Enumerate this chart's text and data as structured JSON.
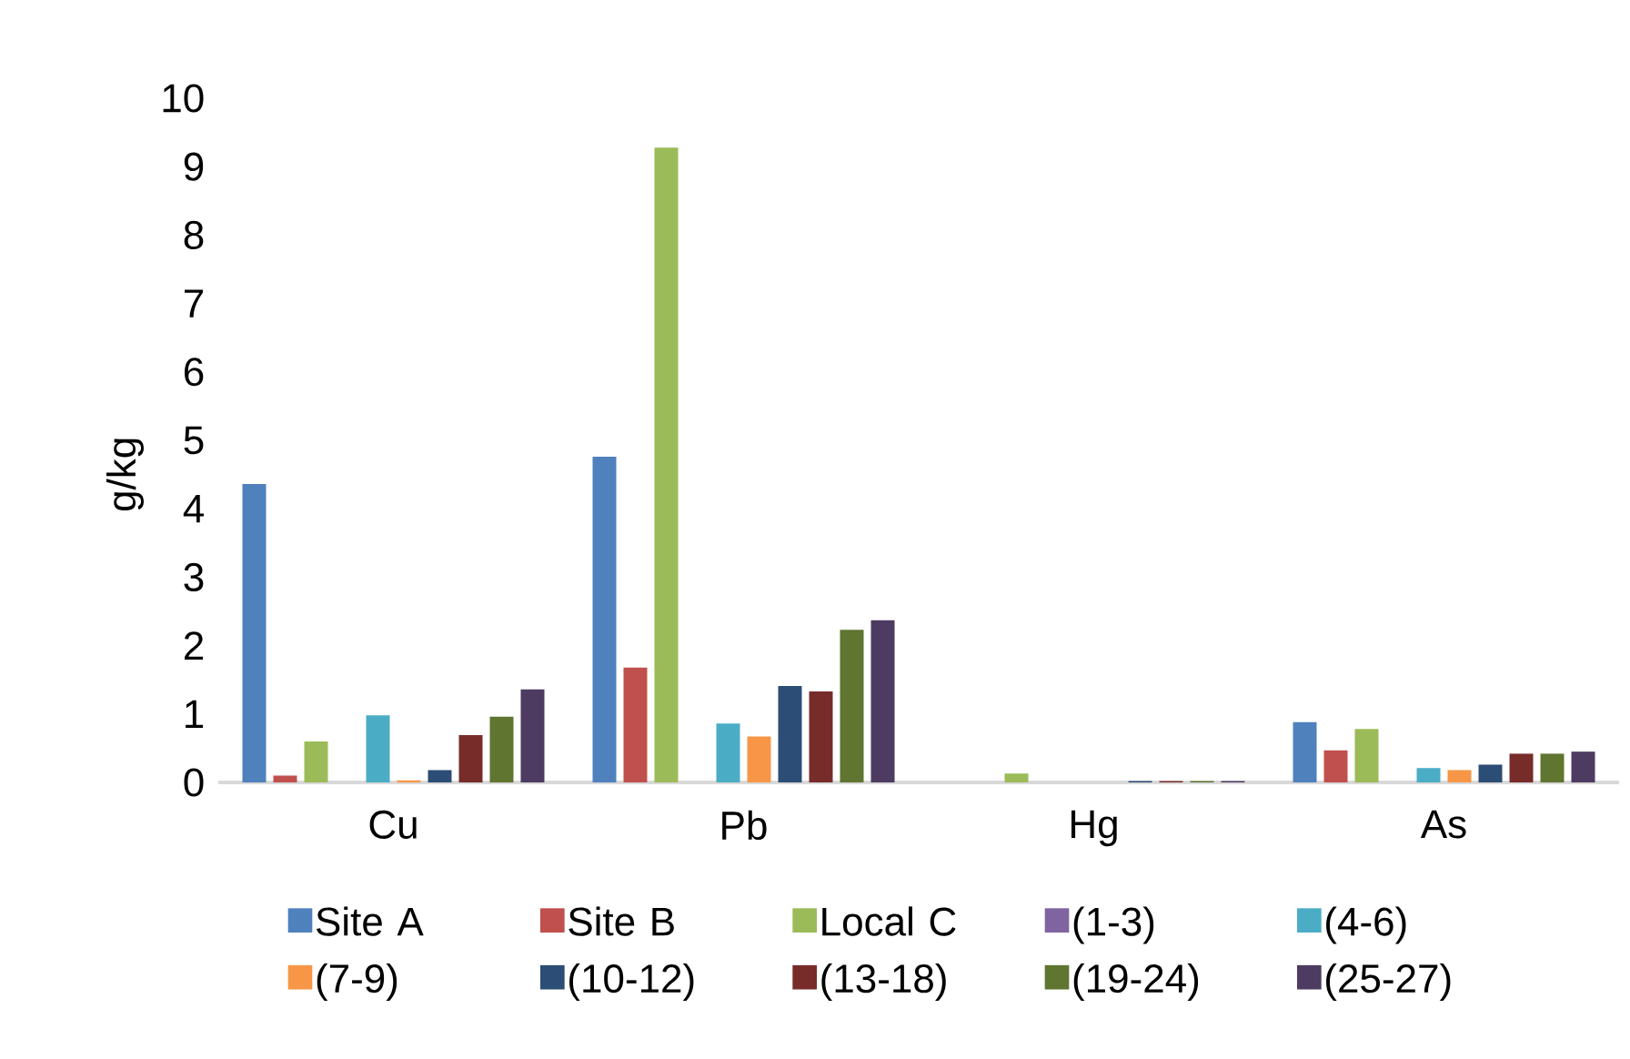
{
  "chart_data": {
    "type": "bar",
    "ylabel": "g/kg",
    "categories": [
      "Cu",
      "Pb",
      "Hg",
      "As"
    ],
    "ylim": [
      0,
      10
    ],
    "yticks": [
      0,
      1,
      2,
      3,
      4,
      5,
      6,
      7,
      8,
      9,
      10
    ],
    "legend": "bottom",
    "series": [
      {
        "name": "Site A",
        "color": "#4f81bd",
        "values": [
          4.36,
          4.76,
          0,
          0.88
        ]
      },
      {
        "name": "Site B",
        "color": "#c0504d",
        "values": [
          0.1,
          1.68,
          0,
          0.47
        ]
      },
      {
        "name": "Local C",
        "color": "#9bbb59",
        "values": [
          0.6,
          9.28,
          0.13,
          0.78
        ]
      },
      {
        "name": "(1-3)",
        "color": "#8064a2",
        "values": [
          0,
          0,
          0,
          0
        ]
      },
      {
        "name": "(4-6)",
        "color": "#4bacc6",
        "values": [
          0.98,
          0.86,
          0,
          0.21
        ]
      },
      {
        "name": "(7-9)",
        "color": "#f79646",
        "values": [
          0.03,
          0.67,
          0,
          0.18
        ]
      },
      {
        "name": "(10-12)",
        "color": "#2c4d75",
        "values": [
          0.18,
          1.41,
          0.02,
          0.26
        ]
      },
      {
        "name": "(13-18)",
        "color": "#772c2a",
        "values": [
          0.69,
          1.33,
          0.02,
          0.42
        ]
      },
      {
        "name": "(19-24)",
        "color": "#5f7530",
        "values": [
          0.96,
          2.23,
          0.02,
          0.42
        ]
      },
      {
        "name": "(25-27)",
        "color": "#4d3b62",
        "values": [
          1.36,
          2.37,
          0.02,
          0.45
        ]
      }
    ]
  }
}
